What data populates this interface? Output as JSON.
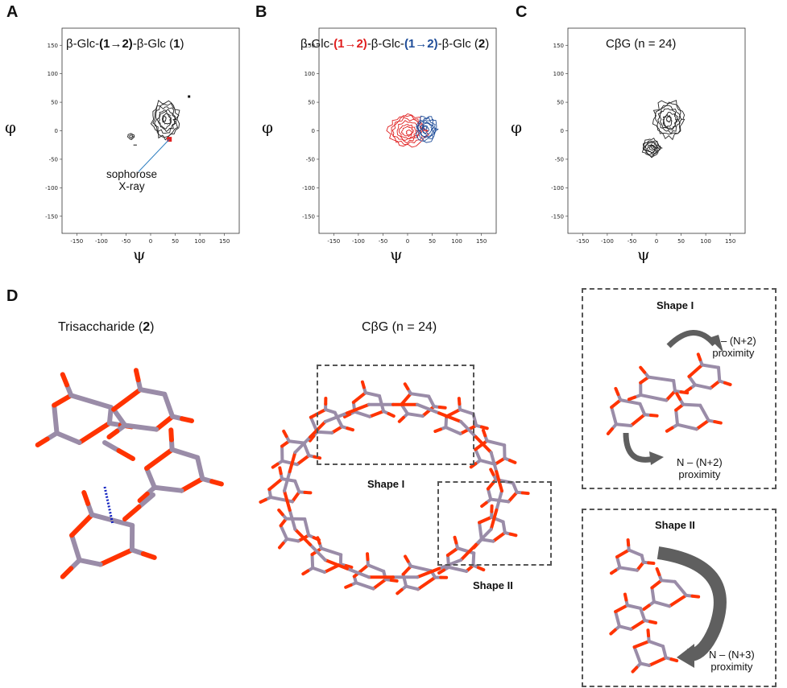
{
  "panels": {
    "A": {
      "letter": "A",
      "title_pre": "β-Glc-",
      "title_link": "(1→2)",
      "title_mid": "-β-Glc (",
      "title_num": "1",
      "title_end": ")",
      "annotation_line1": "sophorose",
      "annotation_line2": "X-ray",
      "ylabel": "φ",
      "xlabel": "ψ"
    },
    "B": {
      "letter": "B",
      "title_pre": "β-Glc-",
      "title_link1": "(1→2)",
      "title_mid1": "-β-Glc-",
      "title_link2": "(1→2)",
      "title_mid2": "-β-Glc (",
      "title_num": "2",
      "title_end": ")",
      "ylabel": "φ",
      "xlabel": "ψ"
    },
    "C": {
      "letter": "C",
      "title": "CβG (n = 24)",
      "ylabel": "φ",
      "xlabel": "ψ"
    },
    "D": {
      "letter": "D",
      "tri_title_pre": "Trisaccharide (",
      "tri_title_num": "2",
      "tri_title_end": ")",
      "cbg_title": "CβG (n = 24)",
      "shape1_label": "Shape I",
      "shape2_label": "Shape II",
      "box1_title": "Shape I",
      "box1_note_top_1": "N – (N+2)",
      "box1_note_top_2": "proximity",
      "box1_note_bot_1": "N – (N+2)",
      "box1_note_bot_2": "proximity",
      "box2_title": "Shape II",
      "box2_note_1": "N – (N+3)",
      "box2_note_2": "proximity"
    }
  },
  "colors": {
    "contour_black": "#222222",
    "contour_red": "#e02020",
    "contour_blue": "#1f4d99",
    "xray_marker": "#e02020",
    "annotation_line": "#2f7fc1",
    "stick_carbon": "#9a8ca8",
    "stick_oxygen": "#ff3300",
    "arrow_gray": "#5f5f5f",
    "hbond_blue": "#1020c0"
  },
  "chart_data": [
    {
      "type": "contour",
      "panel": "A",
      "xlim": [
        -180,
        180
      ],
      "ylim": [
        -180,
        180
      ],
      "xticks": [
        -150,
        -100,
        -50,
        0,
        50,
        100,
        150
      ],
      "yticks": [
        150,
        100,
        50,
        0,
        -50,
        -100,
        -150
      ],
      "series": [
        {
          "color": "black",
          "center": [
            30,
            20
          ],
          "spread": [
            28,
            32
          ]
        },
        {
          "color": "black",
          "center": [
            -40,
            -10
          ],
          "spread": [
            6,
            5
          ]
        }
      ],
      "markers": [
        {
          "x": 38,
          "y": -15
        }
      ]
    },
    {
      "type": "contour",
      "panel": "B",
      "xlim": [
        -180,
        180
      ],
      "ylim": [
        -180,
        180
      ],
      "xticks": [
        -150,
        -100,
        -50,
        0,
        50,
        100,
        150
      ],
      "yticks": [
        150,
        100,
        50,
        0,
        -50,
        -100,
        -150
      ],
      "series": [
        {
          "color": "red",
          "center": [
            0,
            0
          ],
          "spread": [
            38,
            28
          ]
        },
        {
          "color": "blue",
          "center": [
            38,
            3
          ],
          "spread": [
            22,
            22
          ]
        }
      ]
    },
    {
      "type": "contour",
      "panel": "C",
      "xlim": [
        -180,
        180
      ],
      "ylim": [
        -180,
        180
      ],
      "xticks": [
        -150,
        -100,
        -50,
        0,
        50,
        100,
        150
      ],
      "yticks": [
        150,
        100,
        50,
        0,
        -50,
        -100,
        -150
      ],
      "series": [
        {
          "color": "black",
          "center": [
            25,
            20
          ],
          "spread": [
            30,
            32
          ]
        },
        {
          "color": "black",
          "center": [
            -10,
            -30
          ],
          "spread": [
            18,
            15
          ]
        }
      ]
    }
  ]
}
